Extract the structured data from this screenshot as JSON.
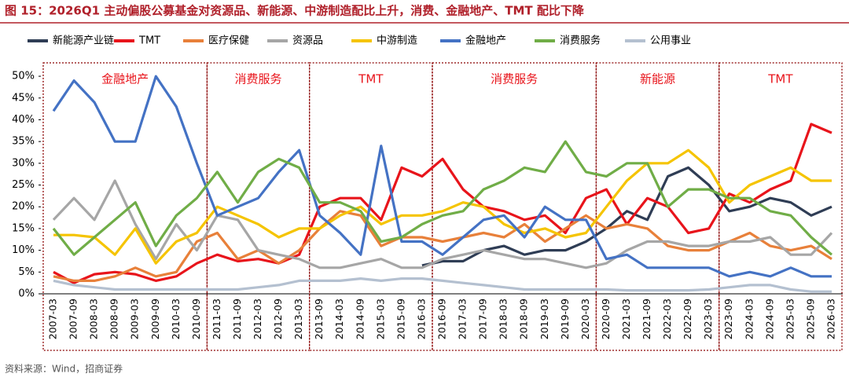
{
  "chart_data": {
    "type": "line",
    "title": "图 15：2026Q1 主动偏股公募基金对资源品、新能源、中游制造配比上升，消费、金融地产、TMT 配比下降",
    "source": "资料来源：Wind，招商证券",
    "categories": [
      "2007-03",
      "2007-09",
      "2008-03",
      "2008-09",
      "2009-03",
      "2009-09",
      "2010-03",
      "2010-09",
      "2011-03",
      "2011-09",
      "2012-03",
      "2012-09",
      "2013-03",
      "2013-09",
      "2014-03",
      "2014-09",
      "2015-03",
      "2015-09",
      "2016-03",
      "2016-09",
      "2017-03",
      "2017-09",
      "2018-03",
      "2018-09",
      "2019-03",
      "2019-09",
      "2020-03",
      "2020-09",
      "2021-03",
      "2021-09",
      "2022-03",
      "2022-09",
      "2023-03",
      "2023-09",
      "2024-03",
      "2024-09",
      "2025-03",
      "2025-09",
      "2026-03"
    ],
    "ylim": [
      0,
      52
    ],
    "yticks": [
      {
        "value": 0,
        "label": "0%"
      },
      {
        "value": 5,
        "label": "5%"
      },
      {
        "value": 10,
        "label": "10%"
      },
      {
        "value": 15,
        "label": "15%"
      },
      {
        "value": 20,
        "label": "20%"
      },
      {
        "value": 25,
        "label": "25%"
      },
      {
        "value": 30,
        "label": "30%"
      },
      {
        "value": 35,
        "label": "35%"
      },
      {
        "value": 40,
        "label": "40%"
      },
      {
        "value": 45,
        "label": "45%"
      },
      {
        "value": 50,
        "label": "50%"
      }
    ],
    "series": [
      {
        "name": "新能源产业链",
        "color": "#2f3d55",
        "values": [
          null,
          null,
          null,
          null,
          null,
          null,
          null,
          null,
          null,
          null,
          null,
          null,
          null,
          null,
          null,
          null,
          null,
          null,
          6.5,
          7.5,
          7.5,
          10,
          11,
          9,
          10,
          10,
          12,
          15,
          19,
          17,
          27,
          29,
          25,
          19,
          20,
          22,
          21,
          18,
          20
        ]
      },
      {
        "name": "TMT",
        "color": "#e8141b",
        "values": [
          5,
          2.5,
          4.5,
          5,
          4.5,
          3,
          4,
          7,
          9,
          7.5,
          8,
          7,
          9,
          20,
          22,
          22,
          17,
          29,
          27,
          31,
          24,
          20,
          19,
          17,
          18,
          14,
          22,
          24,
          16,
          22,
          20,
          14,
          15,
          23,
          21,
          24,
          26,
          39,
          37
        ]
      },
      {
        "name": "医疗保健",
        "color": "#e8803a",
        "values": [
          4,
          3,
          3,
          4,
          6,
          4,
          5,
          12,
          14,
          8,
          10,
          7,
          10,
          15,
          19,
          18,
          11,
          13,
          13,
          12,
          13,
          14,
          13,
          16,
          12,
          15,
          18,
          15,
          16,
          15,
          11,
          10,
          10,
          12,
          14,
          11,
          10,
          11,
          8
        ]
      },
      {
        "name": "资源品",
        "color": "#a6a6a6",
        "values": [
          17,
          22,
          17,
          26,
          16,
          8,
          16,
          10,
          18,
          17,
          10,
          9,
          8,
          6,
          6,
          7,
          8,
          6,
          6,
          8,
          9,
          10,
          9,
          8,
          8,
          7,
          6,
          7,
          10,
          12,
          12,
          11,
          11,
          12,
          12,
          13,
          9,
          9,
          14
        ]
      },
      {
        "name": "中游制造",
        "color": "#f5c400",
        "values": [
          13.5,
          13.5,
          13,
          9,
          15,
          7,
          12,
          14,
          20,
          18,
          16,
          13,
          15,
          15,
          18,
          20,
          16,
          18,
          18,
          19,
          21,
          20,
          16,
          14,
          15,
          13,
          14,
          20,
          26,
          30,
          30,
          33,
          29,
          21,
          25,
          27,
          29,
          26,
          26
        ]
      },
      {
        "name": "金融地产",
        "color": "#4472c4",
        "values": [
          42,
          49,
          44,
          35,
          35,
          50,
          43,
          30,
          18,
          20,
          22,
          28,
          33,
          18,
          14,
          9,
          34,
          12,
          12,
          9,
          13,
          17,
          18,
          13,
          20,
          17,
          17,
          8,
          9,
          6,
          6,
          6,
          6,
          4,
          5,
          4,
          6,
          4,
          4
        ]
      },
      {
        "name": "消费服务",
        "color": "#70ad47",
        "values": [
          15,
          9,
          13,
          17,
          21,
          11,
          18,
          22,
          28,
          21,
          28,
          31,
          29,
          21,
          21,
          19,
          12,
          13,
          16,
          18,
          19,
          24,
          26,
          29,
          28,
          35,
          28,
          27,
          30,
          30,
          20,
          24,
          24,
          22,
          22,
          19,
          18,
          13,
          9
        ]
      },
      {
        "name": "公用事业",
        "color": "#b4c0d0",
        "values": [
          3,
          2,
          1.5,
          1,
          1,
          1,
          1,
          1,
          1,
          1,
          1.5,
          2,
          3,
          3,
          3,
          3.5,
          3,
          3.5,
          3.5,
          3,
          2.5,
          2,
          1.5,
          1,
          1,
          1,
          1,
          1,
          0.8,
          0.8,
          0.8,
          0.8,
          1,
          1.5,
          2,
          2,
          1,
          0.5,
          0.5
        ]
      }
    ],
    "annotations": [
      {
        "label": "金融地产",
        "start": "2007-03",
        "end": "2010-09"
      },
      {
        "label": "消费服务",
        "start": "2011-03",
        "end": "2013-03"
      },
      {
        "label": "TMT",
        "start": "2013-09",
        "end": "2016-03"
      },
      {
        "label": "消费服务",
        "start": "2016-09",
        "end": "2020-03"
      },
      {
        "label": "新能源",
        "start": "2020-09",
        "end": "2023-03"
      },
      {
        "label": "TMT",
        "start": "2023-09",
        "end": "2026-03"
      }
    ]
  }
}
